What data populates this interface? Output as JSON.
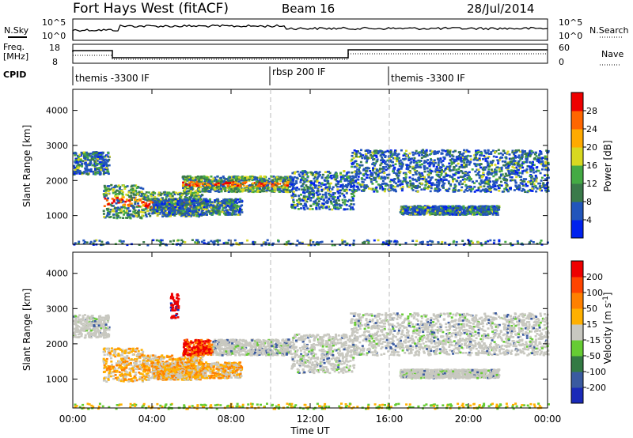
{
  "header": {
    "station": "Fort Hays West (fitACF)",
    "beam": "Beam 16",
    "date": "28/Jul/2014"
  },
  "top_panels": {
    "nsky_label": "N.Sky",
    "nsky_ticks": [
      "10^5",
      "10^0"
    ],
    "nsearch_label": "N.Search",
    "nsearch_ticks": [
      "10^5",
      "10^0"
    ],
    "freq_label": "Freq.",
    "freq_unit": "[MHz]",
    "freq_ticks": [
      "18",
      "8"
    ],
    "nave_label": "Nave",
    "nave_ticks": [
      "60",
      "0"
    ],
    "cpid_label": "CPID",
    "cpid_segments": [
      {
        "label": "themis -3300 IF",
        "start_h": 0,
        "end_h": 10
      },
      {
        "label": "rbsp 200 IF",
        "start_h": 10,
        "end_h": 16
      },
      {
        "label": "themis -3300 IF",
        "start_h": 16,
        "end_h": 24
      }
    ]
  },
  "axes": {
    "ylabel": "Slant Range [km]",
    "yticks": [
      "4000",
      "3000",
      "2000",
      "1000"
    ],
    "xlabel": "Time UT",
    "xticks": [
      "00:00",
      "04:00",
      "08:00",
      "12:00",
      "16:00",
      "20:00",
      "00:00"
    ]
  },
  "colorbars": {
    "power": {
      "label": "Power [dB]",
      "ticks": [
        "28",
        "24",
        "20",
        "16",
        "12",
        "8",
        "4"
      ],
      "colors": [
        "#0022ee",
        "#2255bb",
        "#3a7a4a",
        "#44aa44",
        "#d8d820",
        "#ffaa00",
        "#ff6600",
        "#ee0000"
      ]
    },
    "velocity": {
      "label": "Velocity [m s^-1]",
      "ticks": [
        "200",
        "100",
        "50",
        "15",
        "-15",
        "-50",
        "-100",
        "-200"
      ],
      "colors": [
        "#1a2ab8",
        "#3a5aa0",
        "#337a44",
        "#66cc33",
        "#c8c8c0",
        "#ffb000",
        "#ff8000",
        "#ff4400",
        "#ee0000"
      ]
    }
  },
  "chart_data": {
    "type": "heatmap",
    "x_range_hours": [
      0,
      24
    ],
    "y_range_km": [
      180,
      4600
    ],
    "scan_gap_hours": [
      10,
      16
    ],
    "echo_regions": [
      {
        "name": "far-range echoes",
        "t_start": 0.0,
        "t_end": 1.8,
        "range_start": 2200,
        "range_end": 2850
      },
      {
        "name": "main band",
        "t_start": 1.5,
        "t_end": 3.5,
        "range_start": 950,
        "range_end": 1900
      },
      {
        "name": "main band",
        "t_start": 3.5,
        "t_end": 6.5,
        "range_start": 1000,
        "range_end": 1700
      },
      {
        "name": "arc",
        "t_start": 5.5,
        "t_end": 11.0,
        "range_start": 1700,
        "range_end": 2150
      },
      {
        "name": "lower band",
        "t_start": 4.0,
        "t_end": 8.5,
        "range_start": 1050,
        "range_end": 1500
      },
      {
        "name": "post-gap band",
        "t_start": 11.0,
        "t_end": 14.2,
        "range_start": 1200,
        "range_end": 2300
      },
      {
        "name": "evening band",
        "t_start": 14.0,
        "t_end": 24.0,
        "range_start": 1700,
        "range_end": 2900
      },
      {
        "name": "near-range band",
        "t_start": 16.5,
        "t_end": 21.5,
        "range_start": 1050,
        "range_end": 1300
      },
      {
        "name": "ground scatter floor",
        "t_start": 0.0,
        "t_end": 24.0,
        "range_start": 180,
        "range_end": 330
      }
    ],
    "red_patch_hours": [
      4.9,
      5.3
    ],
    "red_patch_range_km": [
      2750,
      3450
    ]
  }
}
